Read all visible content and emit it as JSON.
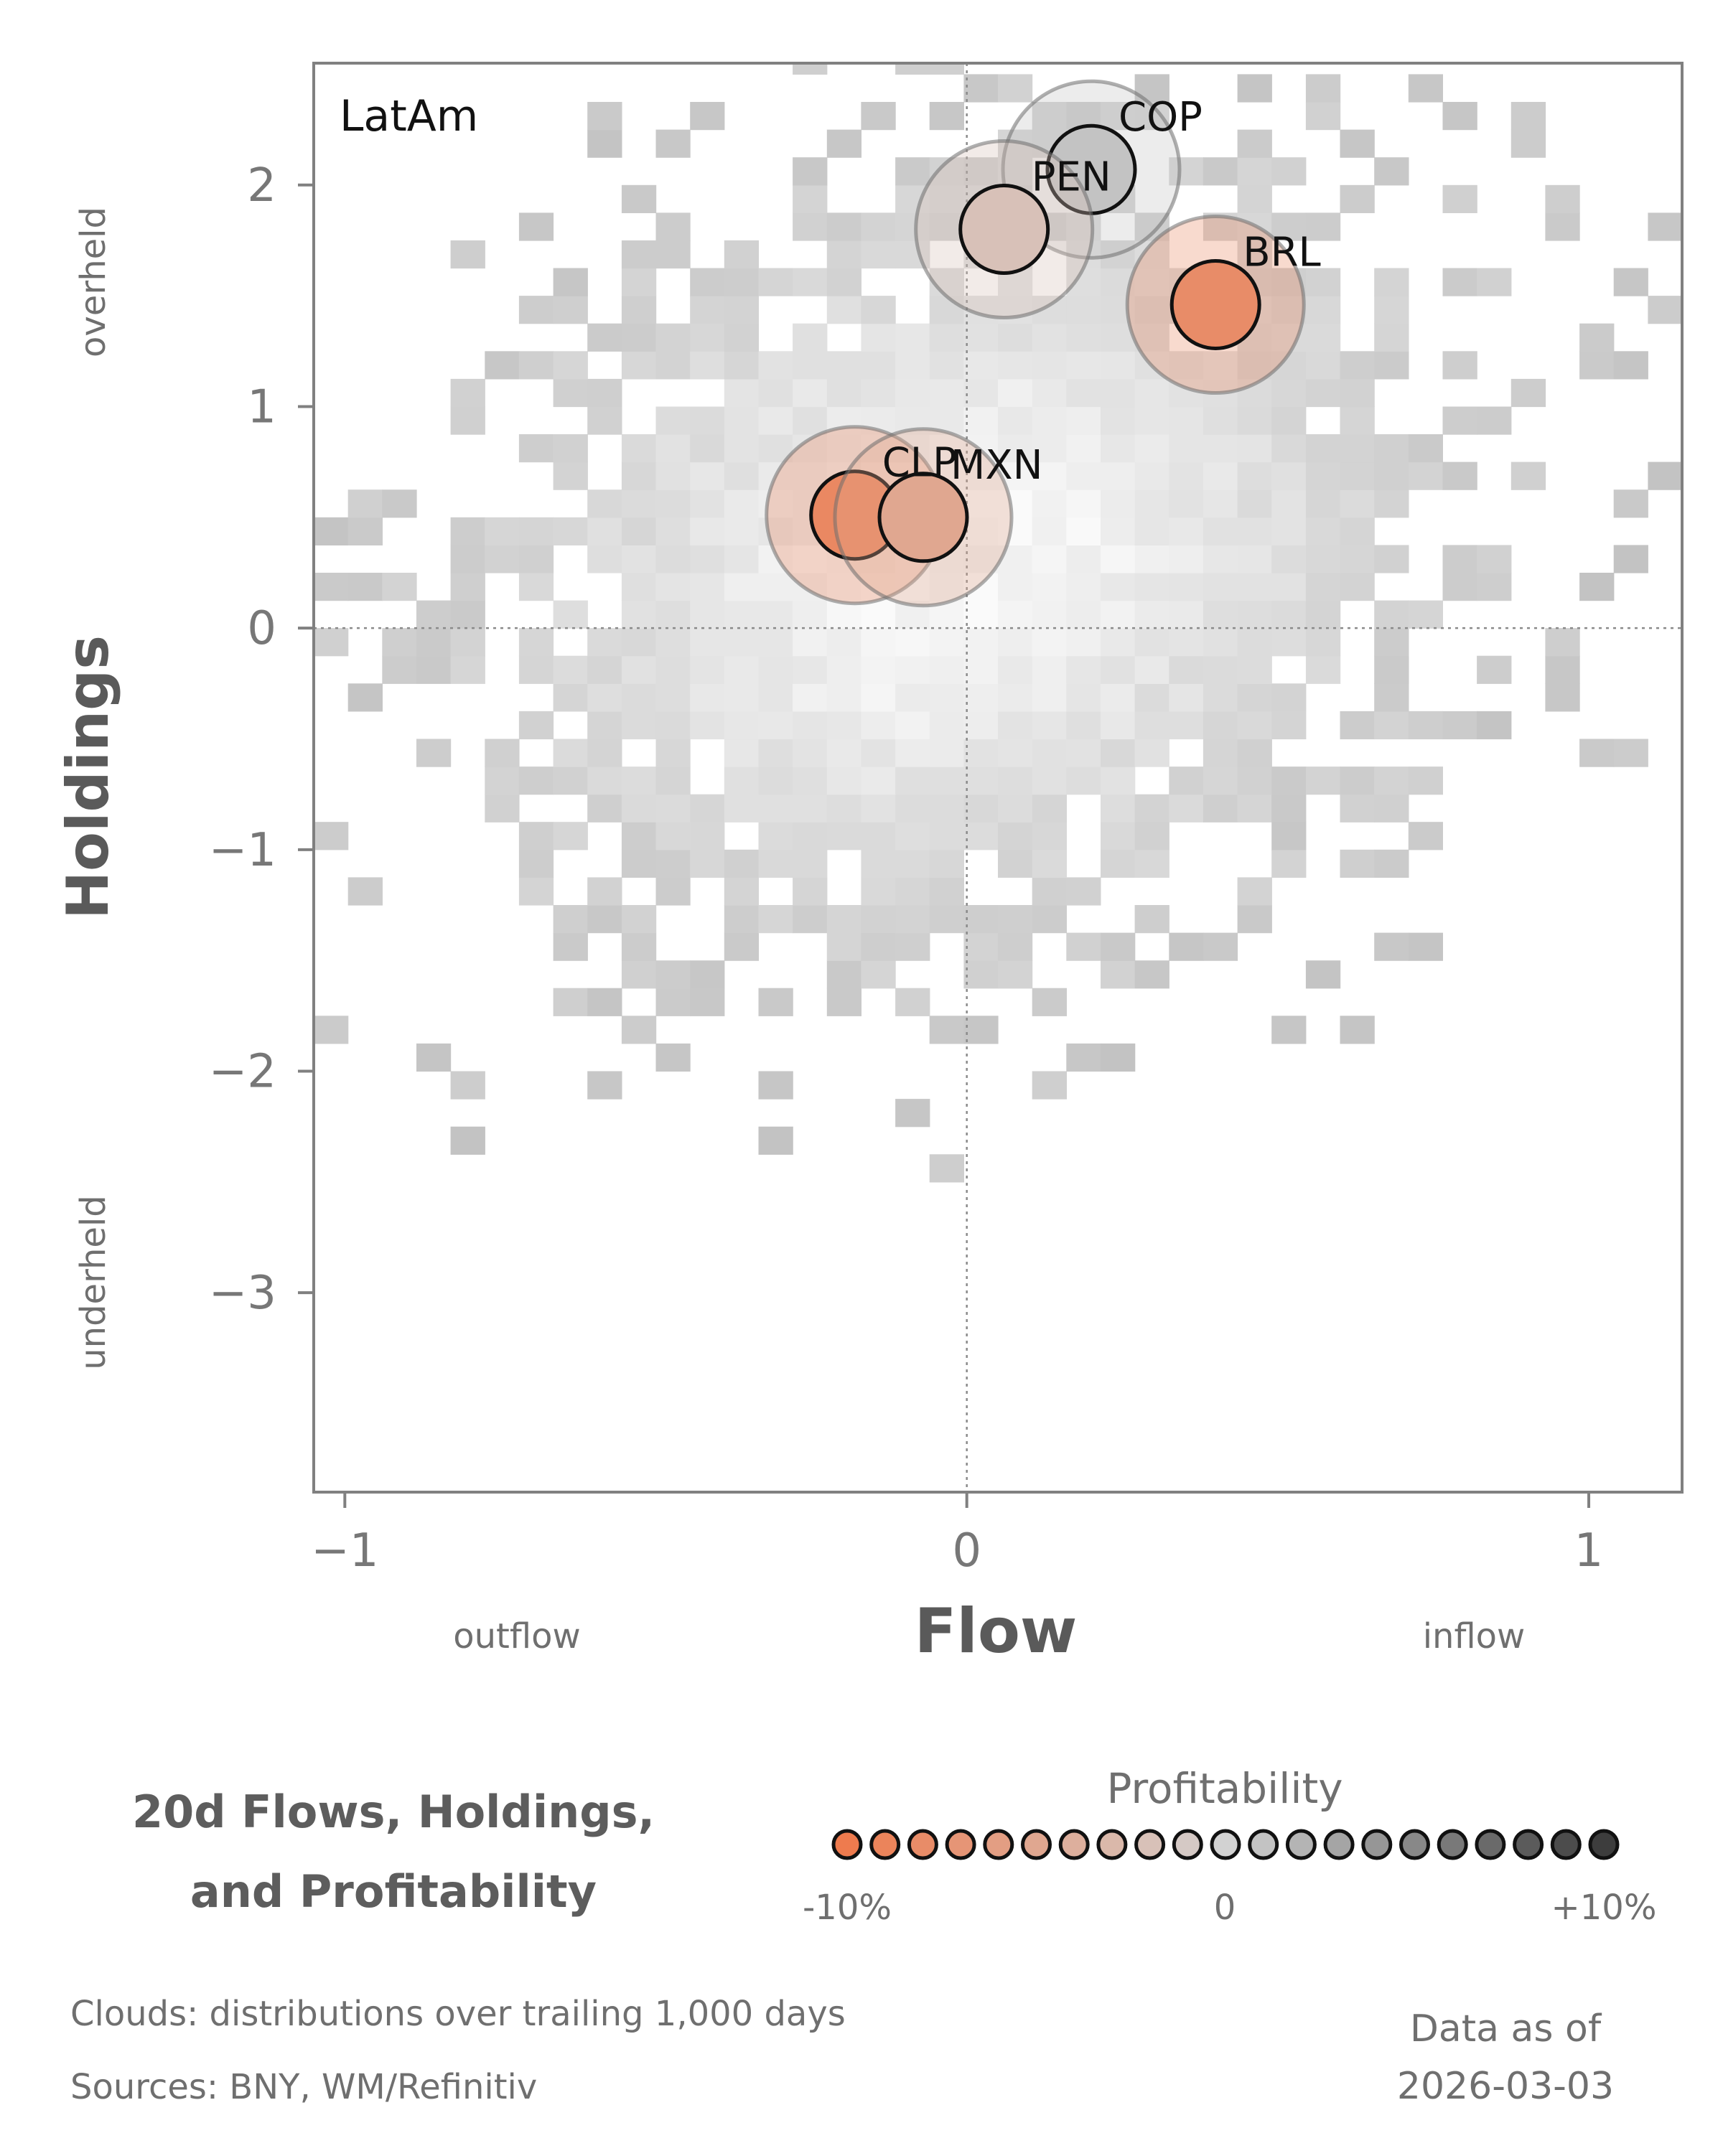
{
  "chart_data": {
    "type": "scatter",
    "panel_label": "LatAm",
    "xlabel": "Flow",
    "ylabel": "Holdings",
    "x_low_label": "outflow",
    "x_high_label": "inflow",
    "y_high_label": "overheld",
    "y_low_label": "underheld",
    "xlim": [
      -1.05,
      1.15
    ],
    "ylim": [
      -3.9,
      2.55
    ],
    "x_ticks": [
      {
        "value": -1,
        "label": "−1"
      },
      {
        "value": 0,
        "label": "0"
      },
      {
        "value": 1,
        "label": "1"
      }
    ],
    "y_ticks": [
      {
        "value": 2,
        "label": "2"
      },
      {
        "value": 1,
        "label": "1"
      },
      {
        "value": 0,
        "label": "0"
      },
      {
        "value": -1,
        "label": "−1"
      },
      {
        "value": -2,
        "label": "−2"
      },
      {
        "value": -3,
        "label": "−3"
      }
    ],
    "points": [
      {
        "name": "COP",
        "flow": 0.2,
        "holdings": 2.07,
        "profitability": 1
      },
      {
        "name": "PEN",
        "flow": 0.06,
        "holdings": 1.8,
        "profitability": -2
      },
      {
        "name": "BRL",
        "flow": 0.4,
        "holdings": 1.46,
        "profitability": -8
      },
      {
        "name": "CLP",
        "flow": -0.18,
        "holdings": 0.51,
        "profitability": -8.5
      },
      {
        "name": "MXN",
        "flow": -0.07,
        "holdings": 0.5,
        "profitability": -5
      }
    ],
    "cloud": {
      "description": "distributions over trailing 1,000 days"
    },
    "colorscale": {
      "title": "Profitability",
      "min": -10,
      "max": 10,
      "tick_labels": [
        "-10%",
        "0",
        "+10%"
      ],
      "negative_color": "#ee7b4e",
      "neutral_color": "#d2d2d2",
      "positive_color": "#3d3d3d"
    },
    "title_lines": [
      "20d Flows, Holdings,",
      "and Profitability"
    ]
  },
  "footer": {
    "clouds_note": "Clouds:  distributions over trailing 1,000 days",
    "sources_note": "Sources:  BNY, WM/Refinitiv",
    "as_of_label": "Data as of",
    "as_of_date": "2026-03-03"
  }
}
